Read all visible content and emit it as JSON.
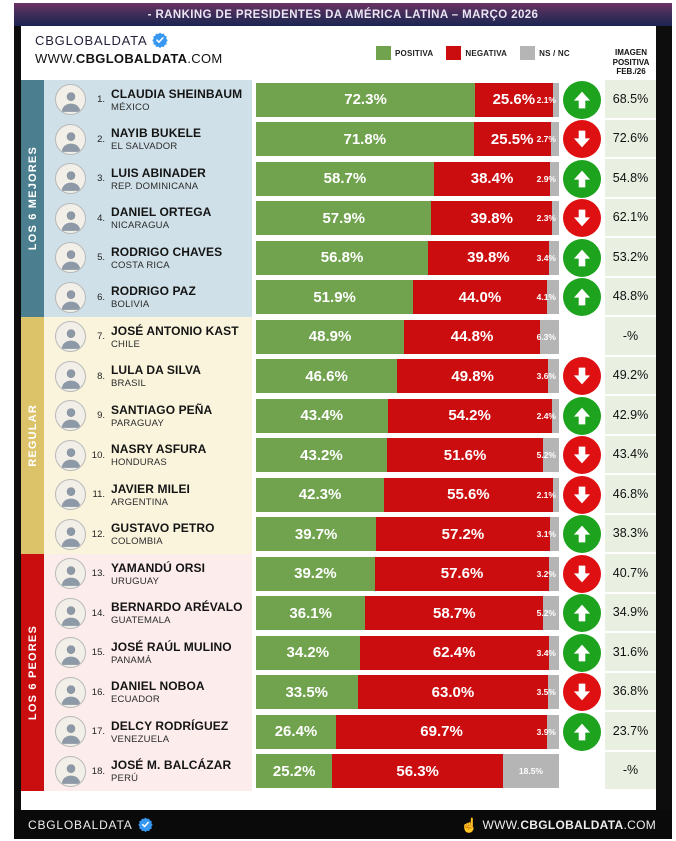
{
  "title_bar": "- RANKING DE PRESIDENTES DA AMÉRICA LATINA – MARÇO 2026",
  "header": {
    "brand": "CBGLOBALDATA",
    "url_prefix": "WWW.",
    "url_bold": "CBGLOBALDATA",
    "url_suffix": ".COM",
    "legend": [
      {
        "label": "POSITIVA",
        "color": "#71a34f"
      },
      {
        "label": "NEGATIVA",
        "color": "#cc0d10"
      },
      {
        "label": "NS / NC",
        "color": "#b5b5b5"
      }
    ],
    "right_col": [
      "IMAGEN",
      "POSITIVA",
      "FEB./26"
    ]
  },
  "colors": {
    "positive": "#71a34f",
    "negative": "#cc0d10",
    "nsnc": "#b5b5b5",
    "trend_up": "#1da31d",
    "trend_down": "#df1011",
    "badge_blue": "#3897f0"
  },
  "sections": [
    {
      "label": "LOS 6 MEJORES",
      "strip_color": "#4b7f8f",
      "row_bg": "#cfe0e8",
      "rows": [
        {
          "rank": "1.",
          "name": "CLAUDIA SHEINBAUM",
          "country": "MÉXICO",
          "positive": 72.3,
          "negative": 25.6,
          "nsnc": 2.1,
          "trend": "up",
          "previous": "68.5%"
        },
        {
          "rank": "2.",
          "name": "NAYIB BUKELE",
          "country": "EL SALVADOR",
          "positive": 71.8,
          "negative": 25.5,
          "nsnc": 2.7,
          "trend": "down",
          "previous": "72.6%"
        },
        {
          "rank": "3.",
          "name": "LUIS ABINADER",
          "country": "REP. DOMINICANA",
          "positive": 58.7,
          "negative": 38.4,
          "nsnc": 2.9,
          "trend": "up",
          "previous": "54.8%"
        },
        {
          "rank": "4.",
          "name": "DANIEL ORTEGA",
          "country": "NICARAGUA",
          "positive": 57.9,
          "negative": 39.8,
          "nsnc": 2.3,
          "trend": "down",
          "previous": "62.1%"
        },
        {
          "rank": "5.",
          "name": "RODRIGO CHAVES",
          "country": "COSTA RICA",
          "positive": 56.8,
          "negative": 39.8,
          "nsnc": 3.4,
          "trend": "up",
          "previous": "53.2%"
        },
        {
          "rank": "6.",
          "name": "RODRIGO PAZ",
          "country": "BOLIVIA",
          "positive": 51.9,
          "negative": 44.0,
          "nsnc": 4.1,
          "trend": "up",
          "previous": "48.8%"
        }
      ]
    },
    {
      "label": "REGULAR",
      "strip_color": "#dcc269",
      "row_bg": "#faf4dd",
      "rows": [
        {
          "rank": "7.",
          "name": "JOSÉ ANTONIO KAST",
          "country": "CHILE",
          "positive": 48.9,
          "negative": 44.8,
          "nsnc": 6.3,
          "trend": "none",
          "previous": "-%"
        },
        {
          "rank": "8.",
          "name": "LULA DA SILVA",
          "country": "BRASIL",
          "positive": 46.6,
          "negative": 49.8,
          "nsnc": 3.6,
          "trend": "down",
          "previous": "49.2%"
        },
        {
          "rank": "9.",
          "name": "SANTIAGO PEÑA",
          "country": "PARAGUAY",
          "positive": 43.4,
          "negative": 54.2,
          "nsnc": 2.4,
          "trend": "up",
          "previous": "42.9%"
        },
        {
          "rank": "10.",
          "name": "NASRY ASFURA",
          "country": "HONDURAS",
          "positive": 43.2,
          "negative": 51.6,
          "nsnc": 5.2,
          "trend": "down",
          "previous": "43.4%"
        },
        {
          "rank": "11.",
          "name": "JAVIER MILEI",
          "country": "ARGENTINA",
          "positive": 42.3,
          "negative": 55.6,
          "nsnc": 2.1,
          "trend": "down",
          "previous": "46.8%"
        },
        {
          "rank": "12.",
          "name": "GUSTAVO PETRO",
          "country": "COLOMBIA",
          "positive": 39.7,
          "negative": 57.2,
          "nsnc": 3.1,
          "trend": "up",
          "previous": "38.3%"
        }
      ]
    },
    {
      "label": "LOS 6 PEORES",
      "strip_color": "#ca0d0e",
      "row_bg": "#fcecec",
      "rows": [
        {
          "rank": "13.",
          "name": "YAMANDÚ ORSI",
          "country": "URUGUAY",
          "positive": 39.2,
          "negative": 57.6,
          "nsnc": 3.2,
          "trend": "down",
          "previous": "40.7%"
        },
        {
          "rank": "14.",
          "name": "BERNARDO ARÉVALO",
          "country": "GUATEMALA",
          "positive": 36.1,
          "negative": 58.7,
          "nsnc": 5.2,
          "trend": "up",
          "previous": "34.9%"
        },
        {
          "rank": "15.",
          "name": "JOSÉ RAÚL MULINO",
          "country": "PANAMÁ",
          "positive": 34.2,
          "negative": 62.4,
          "nsnc": 3.4,
          "trend": "up",
          "previous": "31.6%"
        },
        {
          "rank": "16.",
          "name": "DANIEL NOBOA",
          "country": "ECUADOR",
          "positive": 33.5,
          "negative": 63.0,
          "nsnc": 3.5,
          "trend": "down",
          "previous": "36.8%"
        },
        {
          "rank": "17.",
          "name": "DELCY RODRÍGUEZ",
          "country": "VENEZUELA",
          "positive": 26.4,
          "negative": 69.7,
          "nsnc": 3.9,
          "trend": "up",
          "previous": "23.7%"
        },
        {
          "rank": "18.",
          "name": "JOSÉ M. BALCÁZAR",
          "country": "PERÚ",
          "positive": 25.2,
          "negative": 56.3,
          "nsnc": 18.5,
          "trend": "none",
          "previous": "-%"
        }
      ]
    }
  ],
  "footer": {
    "brand": "CBGLOBALDATA",
    "url_prefix": "WWW.",
    "url_bold": "CBGLOBALDATA",
    "url_suffix": ".COM",
    "pointer_icon": "hand-pointer"
  },
  "chart_data": {
    "type": "bar",
    "orientation": "horizontal-stacked",
    "title": "- RANKING DE PRESIDENTES DA AMÉRICA LATINA – MARÇO 2026",
    "categories": [
      "CLAUDIA SHEINBAUM (MÉXICO)",
      "NAYIB BUKELE (EL SALVADOR)",
      "LUIS ABINADER (REP. DOMINICANA)",
      "DANIEL ORTEGA (NICARAGUA)",
      "RODRIGO CHAVES (COSTA RICA)",
      "RODRIGO PAZ (BOLIVIA)",
      "JOSÉ ANTONIO KAST (CHILE)",
      "LULA DA SILVA (BRASIL)",
      "SANTIAGO PEÑA (PARAGUAY)",
      "NASRY ASFURA (HONDURAS)",
      "JAVIER MILEI (ARGENTINA)",
      "GUSTAVO PETRO (COLOMBIA)",
      "YAMANDÚ ORSI (URUGUAY)",
      "BERNARDO ARÉVALO (GUATEMALA)",
      "JOSÉ RAÚL MULINO (PANAMÁ)",
      "DANIEL NOBOA (ECUADOR)",
      "DELCY RODRÍGUEZ (VENEZUELA)",
      "JOSÉ M. BALCÁZAR (PERÚ)"
    ],
    "series": [
      {
        "name": "POSITIVA",
        "values": [
          72.3,
          71.8,
          58.7,
          57.9,
          56.8,
          51.9,
          48.9,
          46.6,
          43.4,
          43.2,
          42.3,
          39.7,
          39.2,
          36.1,
          34.2,
          33.5,
          26.4,
          25.2
        ]
      },
      {
        "name": "NEGATIVA",
        "values": [
          25.6,
          25.5,
          38.4,
          39.8,
          39.8,
          44.0,
          44.8,
          49.8,
          54.2,
          51.6,
          55.6,
          57.2,
          57.6,
          58.7,
          62.4,
          63.0,
          69.7,
          56.3
        ]
      },
      {
        "name": "NS / NC",
        "values": [
          2.1,
          2.7,
          2.9,
          2.3,
          3.4,
          4.1,
          6.3,
          3.6,
          2.4,
          5.2,
          2.1,
          3.1,
          3.2,
          5.2,
          3.4,
          3.5,
          3.9,
          18.5
        ]
      }
    ],
    "trend": [
      "up",
      "down",
      "up",
      "down",
      "up",
      "up",
      "none",
      "down",
      "up",
      "down",
      "down",
      "up",
      "down",
      "up",
      "up",
      "down",
      "up",
      "none"
    ],
    "imagen_positiva_feb26": [
      "68.5%",
      "72.6%",
      "54.8%",
      "62.1%",
      "53.2%",
      "48.8%",
      "-%",
      "49.2%",
      "42.9%",
      "43.4%",
      "46.8%",
      "38.3%",
      "40.7%",
      "34.9%",
      "31.6%",
      "36.8%",
      "23.7%",
      "-%"
    ],
    "groups": [
      "LOS 6 MEJORES (1-6)",
      "REGULAR (7-12)",
      "LOS 6 PEORES (13-18)"
    ],
    "xlim": [
      0,
      100
    ],
    "legend_position": "top"
  }
}
